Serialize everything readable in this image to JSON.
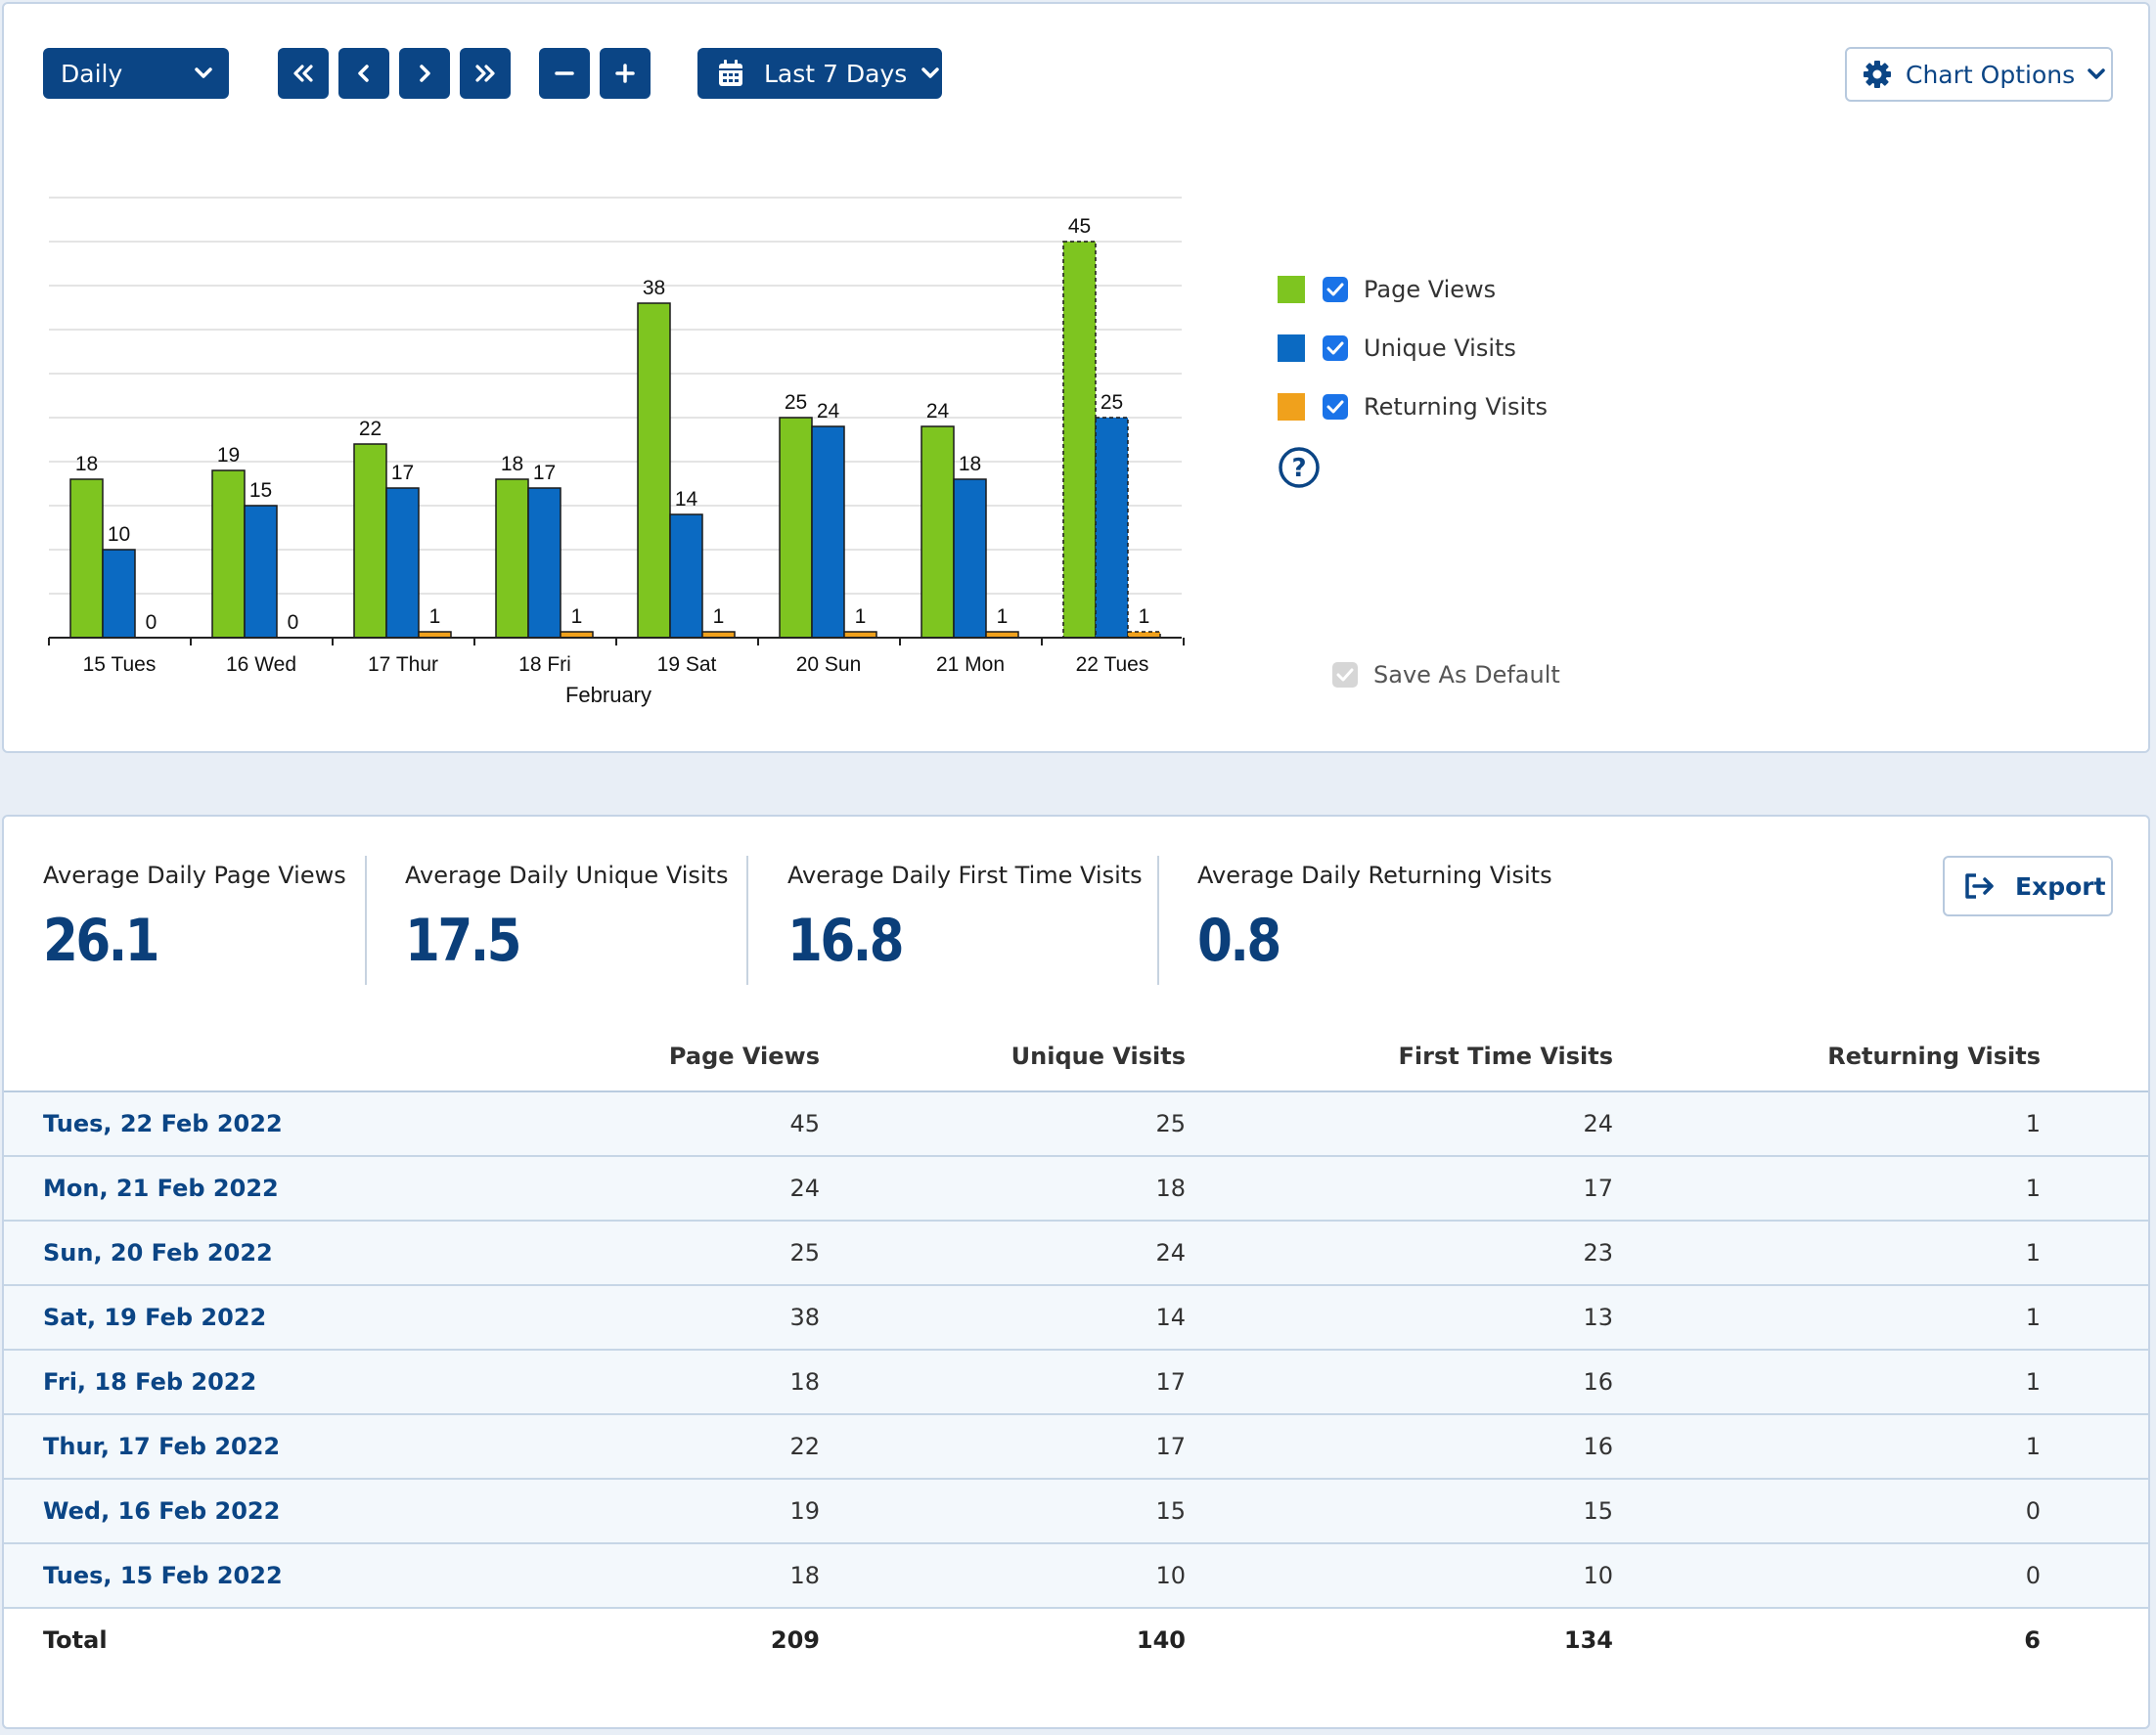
{
  "toolbar": {
    "period_select": "Daily",
    "date_range": "Last 7 Days",
    "chart_options": "Chart Options"
  },
  "colors": {
    "page_views": "#7ec520",
    "unique_visits": "#0b6ac2",
    "returning_visits": "#f0a11c",
    "navy": "#0b4585"
  },
  "legend": {
    "page_views": "Page Views",
    "unique_visits": "Unique Visits",
    "returning_visits": "Returning Visits",
    "save_default": "Save As Default"
  },
  "chart_data": {
    "type": "bar",
    "categories": [
      "15 Tues",
      "16 Wed",
      "17 Thur",
      "18 Fri",
      "19 Sat",
      "20 Sun",
      "21 Mon",
      "22 Tues"
    ],
    "xlabel": "February",
    "ylabel": "",
    "ylim": [
      0,
      50
    ],
    "grid": true,
    "legend_position": "right",
    "highlighted_category": "22 Tues",
    "series": [
      {
        "name": "Page Views",
        "color": "#7ec520",
        "values": [
          18,
          19,
          22,
          18,
          38,
          25,
          24,
          45
        ]
      },
      {
        "name": "Unique Visits",
        "color": "#0b6ac2",
        "values": [
          10,
          15,
          17,
          17,
          14,
          24,
          18,
          25
        ]
      },
      {
        "name": "Returning Visits",
        "color": "#f0a11c",
        "values": [
          0,
          0,
          1,
          1,
          1,
          1,
          1,
          1
        ]
      }
    ]
  },
  "stats": [
    {
      "label": "Average Daily Page Views",
      "value": "26.1"
    },
    {
      "label": "Average Daily Unique Visits",
      "value": "17.5"
    },
    {
      "label": "Average Daily First Time Visits",
      "value": "16.8"
    },
    {
      "label": "Average Daily Returning Visits",
      "value": "0.8"
    }
  ],
  "export_label": "Export",
  "table": {
    "headers": [
      "",
      "Page Views",
      "Unique Visits",
      "First Time Visits",
      "Returning Visits"
    ],
    "rows": [
      [
        "Tues, 22 Feb 2022",
        "45",
        "25",
        "24",
        "1"
      ],
      [
        "Mon, 21 Feb 2022",
        "24",
        "18",
        "17",
        "1"
      ],
      [
        "Sun, 20 Feb 2022",
        "25",
        "24",
        "23",
        "1"
      ],
      [
        "Sat, 19 Feb 2022",
        "38",
        "14",
        "13",
        "1"
      ],
      [
        "Fri, 18 Feb 2022",
        "18",
        "17",
        "16",
        "1"
      ],
      [
        "Thur, 17 Feb 2022",
        "22",
        "17",
        "16",
        "1"
      ],
      [
        "Wed, 16 Feb 2022",
        "19",
        "15",
        "15",
        "0"
      ],
      [
        "Tues, 15 Feb 2022",
        "18",
        "10",
        "10",
        "0"
      ]
    ],
    "total": [
      "Total",
      "209",
      "140",
      "134",
      "6"
    ]
  }
}
